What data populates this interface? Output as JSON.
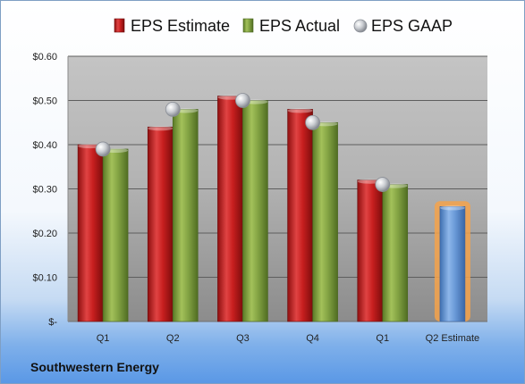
{
  "company": "Southwestern Energy",
  "chart_data": {
    "type": "bar",
    "categories": [
      "Q1",
      "Q2",
      "Q3",
      "Q4",
      "Q1",
      "Q2 Estimate"
    ],
    "series": [
      {
        "name": "EPS Estimate",
        "type": "bar",
        "color": "#cc2222",
        "values": [
          0.4,
          0.44,
          0.51,
          0.48,
          0.32,
          null
        ]
      },
      {
        "name": "EPS Actual",
        "type": "bar",
        "color": "#82a442",
        "values": [
          0.39,
          0.48,
          0.5,
          0.45,
          0.31,
          null
        ]
      },
      {
        "name": "EPS GAAP",
        "type": "marker",
        "color": "#b8bcc2",
        "values": [
          0.39,
          0.48,
          0.5,
          0.45,
          0.31,
          null
        ]
      },
      {
        "name": "Q2 Estimate",
        "type": "bar",
        "color": "#6a9ad8",
        "highlight": "#f4a24a",
        "values": [
          null,
          null,
          null,
          null,
          null,
          0.26
        ]
      }
    ],
    "yticks": [
      "$-",
      "$0.10",
      "$0.20",
      "$0.30",
      "$0.40",
      "$0.50",
      "$0.60"
    ],
    "ylim": [
      0,
      0.6
    ],
    "grid": true,
    "legend_position": "top",
    "legend": [
      "EPS Estimate",
      "EPS Actual",
      "EPS GAAP"
    ]
  }
}
